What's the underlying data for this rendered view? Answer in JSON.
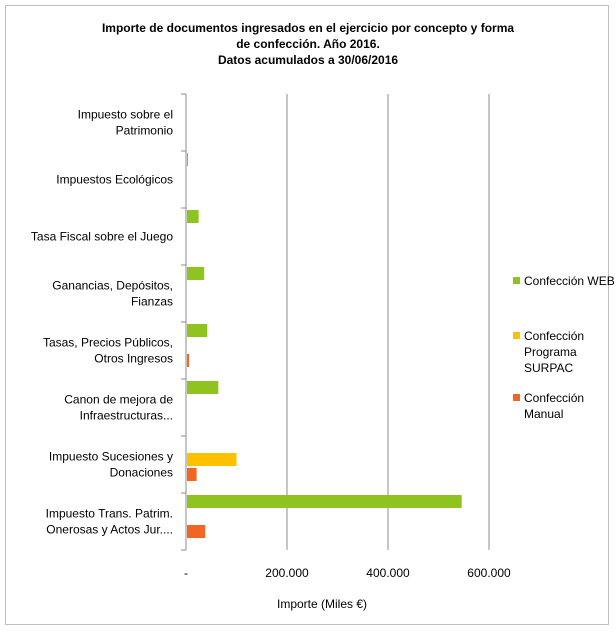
{
  "chart_data": {
    "type": "bar",
    "orientation": "horizontal",
    "title_lines": [
      "Importe de documentos ingresados en el ejercicio por concepto y forma",
      "de confección. Año 2016.",
      "Datos acumulados a 30/06/2016"
    ],
    "xlabel": "Importe (Miles €)",
    "ylabel": "",
    "xlim": [
      0,
      600000
    ],
    "x_ticks": [
      0,
      200000,
      400000,
      600000
    ],
    "x_tick_labels": [
      "-",
      "200.000",
      "400.000",
      "600.000"
    ],
    "grid": "vertical major gridlines",
    "legend_position": "right",
    "categories": [
      {
        "lines": [
          "Impuesto Trans. Patrim.",
          "Onerosas y Actos Jur...."
        ]
      },
      {
        "lines": [
          "Impuesto Sucesiones y",
          "Donaciones"
        ]
      },
      {
        "lines": [
          "Canon de mejora de",
          "Infraestructuras..."
        ]
      },
      {
        "lines": [
          "Tasas, Precios Públicos,",
          "Otros Ingresos"
        ]
      },
      {
        "lines": [
          "Ganancias, Depósitos,",
          "Fianzas"
        ]
      },
      {
        "lines": [
          "Tasa Fiscal sobre el Juego"
        ]
      },
      {
        "lines": [
          "Impuestos Ecológicos"
        ]
      },
      {
        "lines": [
          "Impuesto sobre el",
          "Patrimonio"
        ]
      }
    ],
    "series": [
      {
        "name": "Confección WEB",
        "legend_lines": [
          "Confección WEB"
        ],
        "color": "#8fc31f",
        "values": [
          546000,
          0,
          64000,
          42000,
          36000,
          25000,
          3000,
          0
        ]
      },
      {
        "name": "Confección Programa SURPAC",
        "legend_lines": [
          "Confección",
          "Programa",
          "SURPAC"
        ],
        "color": "#ffc000",
        "values": [
          0,
          100000,
          0,
          0,
          0,
          0,
          0,
          0
        ]
      },
      {
        "name": "Confección Manual",
        "legend_lines": [
          "Confección",
          "Manual"
        ],
        "color": "#f26522",
        "values": [
          38000,
          21000,
          0,
          6000,
          0,
          0,
          0,
          0
        ]
      }
    ]
  }
}
